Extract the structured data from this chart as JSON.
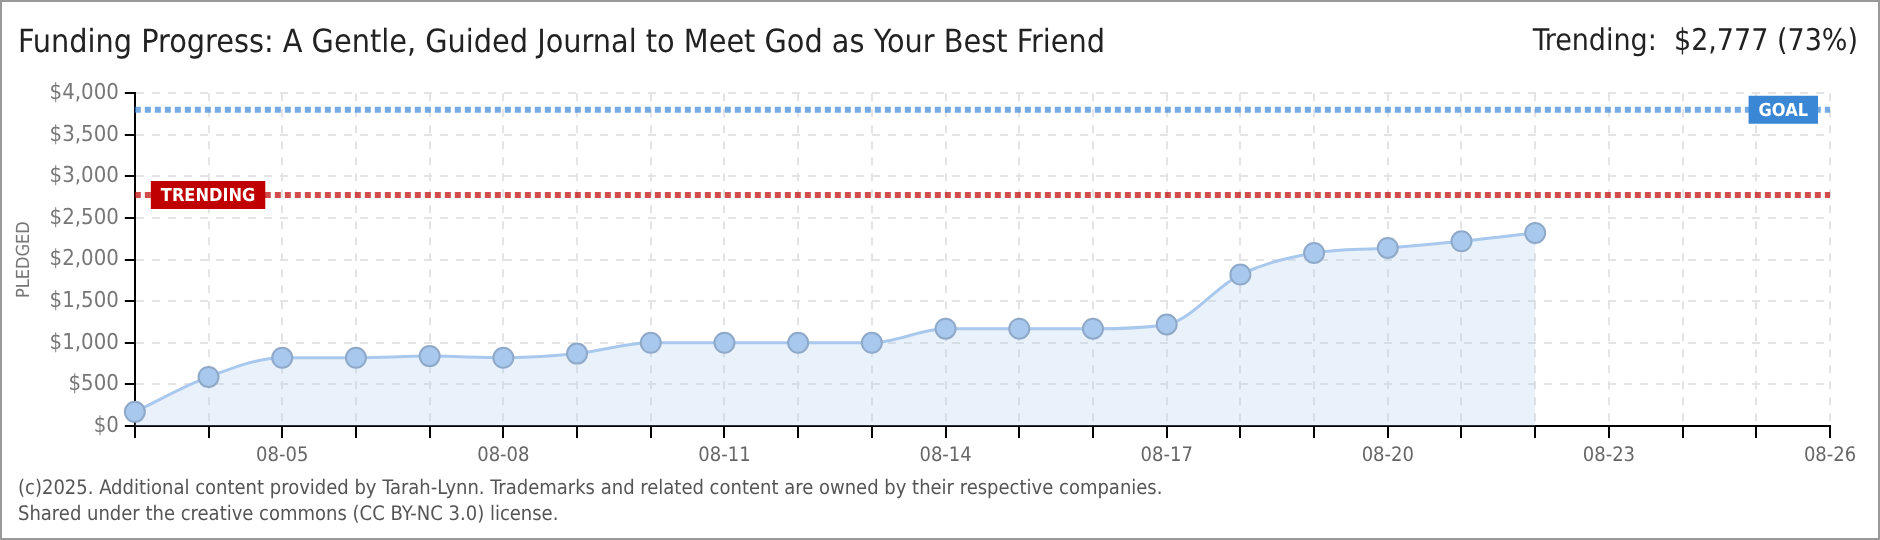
{
  "chart_data": {
    "type": "area",
    "title": "Funding Progress: A Gentle, Guided Journal to Meet God as Your Best Friend",
    "subtitle": "Trending:  $2,777 (73%)",
    "ylabel": "PLEDGED",
    "categories": [
      null,
      null,
      "08-05",
      null,
      null,
      "08-08",
      null,
      null,
      "08-11",
      null,
      null,
      "08-14",
      null,
      null,
      "08-17",
      null,
      null,
      "08-20",
      null,
      null,
      "08-23",
      null,
      null,
      "08-26"
    ],
    "series": [
      {
        "color": "#a9c8ee",
        "values": [
          170,
          590,
          820,
          820,
          840,
          820,
          870,
          1000,
          1000,
          1000,
          1000,
          1170,
          1170,
          1170,
          1220,
          1820,
          2080,
          2140,
          2220,
          2320,
          null,
          null,
          null,
          null
        ]
      }
    ],
    "ylim": [
      0,
      4000
    ],
    "yticks": [
      {
        "value": 0,
        "label": "$0"
      },
      {
        "value": 500,
        "label": "$500"
      },
      {
        "value": 1000,
        "label": "$1,000"
      },
      {
        "value": 1500,
        "label": "$1,500"
      },
      {
        "value": 2000,
        "label": "$2,000"
      },
      {
        "value": 2500,
        "label": "$2,500"
      },
      {
        "value": 3000,
        "label": "$3,000"
      },
      {
        "value": 3500,
        "label": "$3,500"
      },
      {
        "value": 4000,
        "label": "$4,000"
      }
    ],
    "ref_lines": [
      {
        "axis": "y",
        "value": 3800,
        "label": "GOAL",
        "color": "#3a87d6",
        "line_style": "dotted"
      },
      {
        "axis": "y",
        "value": 2777,
        "label": "TRENDING",
        "color": "#c00000",
        "line_style": "dotted"
      }
    ],
    "grid": true,
    "marker": "circle",
    "line_style": "solid",
    "annotations": [
      "(c)2025. Additional content provided by Tarah-Lynn. Trademarks and related content are owned by their respective companies.",
      "Shared under the creative commons (CC BY-NC 3.0) license."
    ]
  }
}
